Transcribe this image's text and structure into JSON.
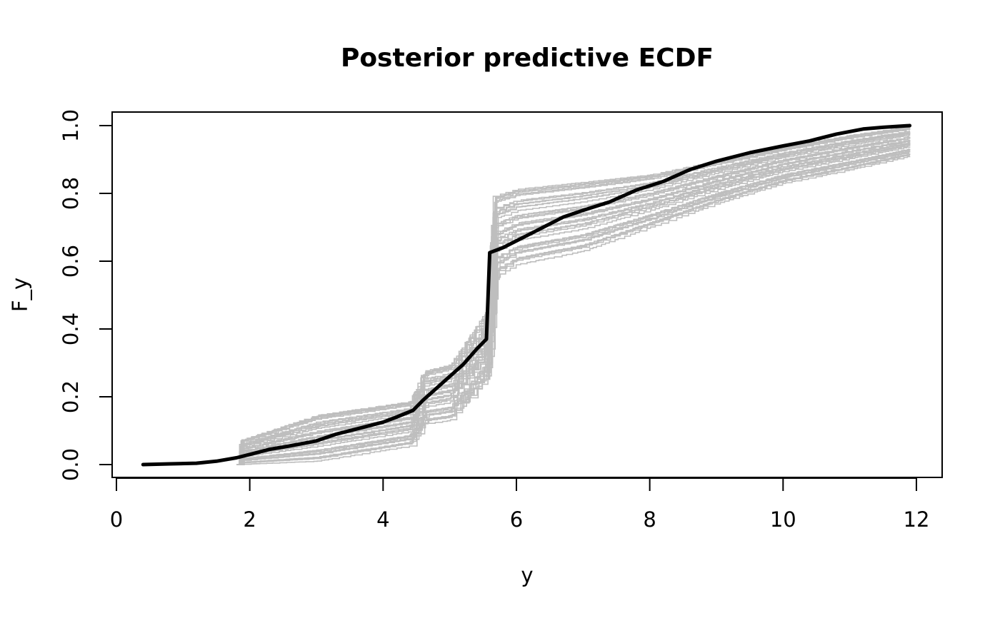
{
  "chart_data": {
    "type": "line",
    "title": "Posterior predictive ECDF",
    "xlabel": "y",
    "ylabel": "F_y",
    "xlim": [
      0,
      12
    ],
    "ylim": [
      0.0,
      1.0
    ],
    "x_ticks": [
      0,
      2,
      4,
      6,
      8,
      10,
      12
    ],
    "x_tick_labels": [
      "0",
      "2",
      "4",
      "6",
      "8",
      "10",
      "12"
    ],
    "y_ticks": [
      0.0,
      0.2,
      0.4,
      0.6,
      0.8,
      1.0
    ],
    "y_tick_labels": [
      "0.0",
      "0.2",
      "0.4",
      "0.6",
      "0.8",
      "1.0"
    ],
    "grid": false,
    "legend": "none",
    "colors": {
      "observed": "#000000",
      "replicates": "#bebebe"
    },
    "observed": {
      "x": [
        0.4,
        0.8,
        1.2,
        1.5,
        1.8,
        2.0,
        2.3,
        2.6,
        3.0,
        3.3,
        3.7,
        4.0,
        4.2,
        4.45,
        4.6,
        4.8,
        5.0,
        5.2,
        5.4,
        5.55,
        5.6,
        5.8,
        6.0,
        6.3,
        6.7,
        7.0,
        7.4,
        7.8,
        8.2,
        8.6,
        9.0,
        9.5,
        10.0,
        10.4,
        10.8,
        11.2,
        11.5,
        11.9
      ],
      "y": [
        0.0,
        0.002,
        0.004,
        0.01,
        0.02,
        0.03,
        0.045,
        0.055,
        0.07,
        0.09,
        0.11,
        0.125,
        0.14,
        0.16,
        0.19,
        0.225,
        0.26,
        0.295,
        0.34,
        0.37,
        0.625,
        0.64,
        0.66,
        0.69,
        0.73,
        0.75,
        0.775,
        0.81,
        0.835,
        0.87,
        0.895,
        0.92,
        0.94,
        0.955,
        0.975,
        0.99,
        0.995,
        1.0
      ]
    },
    "replicates": {
      "count": 40,
      "y_range_at_x": {
        "x": [
          1.8,
          3.0,
          4.4,
          4.6,
          5.0,
          5.55,
          5.65,
          6.0,
          7.0,
          8.0,
          9.0,
          10.0,
          11.0,
          11.9
        ],
        "low": [
          0.0,
          0.01,
          0.055,
          0.12,
          0.13,
          0.25,
          0.55,
          0.59,
          0.63,
          0.7,
          0.77,
          0.83,
          0.87,
          0.91
        ],
        "high": [
          0.07,
          0.15,
          0.19,
          0.28,
          0.3,
          0.46,
          0.8,
          0.82,
          0.84,
          0.86,
          0.9,
          0.94,
          0.975,
          1.0
        ]
      }
    }
  }
}
